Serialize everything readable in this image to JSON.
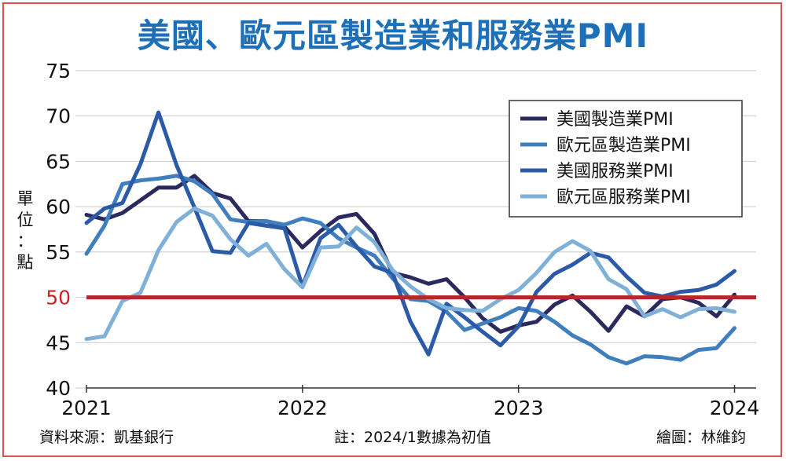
{
  "chart_data": {
    "type": "line",
    "title": "美國、歐元區製造業和服務業PMI",
    "ylabel": "單位：點",
    "ylim": [
      40,
      75
    ],
    "yticks": [
      40,
      45,
      50,
      55,
      60,
      65,
      70,
      75
    ],
    "highlight_tick": 50,
    "x_range": [
      2021.0,
      2024.1
    ],
    "xticks": [
      {
        "value": 2021,
        "label": "2021"
      },
      {
        "value": 2022,
        "label": "2022"
      },
      {
        "value": 2023,
        "label": "2023"
      },
      {
        "value": 2024,
        "label": "2024"
      }
    ],
    "reference_line": {
      "y": 50,
      "color": "#b8262b"
    },
    "legend_position": "top-right",
    "series": [
      {
        "name": "美國製造業PMI",
        "color": "#2b2a5e",
        "values": [
          [
            2021.0,
            59.1
          ],
          [
            2021.0833,
            58.6
          ],
          [
            2021.1667,
            59.3
          ],
          [
            2021.25,
            60.7
          ],
          [
            2021.3333,
            62.1
          ],
          [
            2021.4167,
            62.1
          ],
          [
            2021.5,
            63.4
          ],
          [
            2021.5833,
            61.5
          ],
          [
            2021.6667,
            60.9
          ],
          [
            2021.75,
            58.4
          ],
          [
            2021.8333,
            58.4
          ],
          [
            2021.9167,
            57.8
          ],
          [
            2022.0,
            55.5
          ],
          [
            2022.0833,
            57.3
          ],
          [
            2022.1667,
            58.8
          ],
          [
            2022.25,
            59.2
          ],
          [
            2022.3333,
            57.0
          ],
          [
            2022.4167,
            52.7
          ],
          [
            2022.5,
            52.2
          ],
          [
            2022.5833,
            51.5
          ],
          [
            2022.6667,
            52.0
          ],
          [
            2022.75,
            50.0
          ],
          [
            2022.8333,
            47.7
          ],
          [
            2022.9167,
            46.2
          ],
          [
            2023.0,
            46.9
          ],
          [
            2023.0833,
            47.3
          ],
          [
            2023.1667,
            49.2
          ],
          [
            2023.25,
            50.2
          ],
          [
            2023.3333,
            48.4
          ],
          [
            2023.4167,
            46.3
          ],
          [
            2023.5,
            49.0
          ],
          [
            2023.5833,
            47.9
          ],
          [
            2023.6667,
            49.8
          ],
          [
            2023.75,
            50.0
          ],
          [
            2023.8333,
            49.4
          ],
          [
            2023.9167,
            47.9
          ],
          [
            2024.0,
            50.3
          ]
        ]
      },
      {
        "name": "歐元區製造業PMI",
        "color": "#3f7fbf",
        "values": [
          [
            2021.0,
            54.8
          ],
          [
            2021.0833,
            57.9
          ],
          [
            2021.1667,
            62.5
          ],
          [
            2021.25,
            62.9
          ],
          [
            2021.3333,
            63.1
          ],
          [
            2021.4167,
            63.4
          ],
          [
            2021.5,
            62.8
          ],
          [
            2021.5833,
            61.4
          ],
          [
            2021.6667,
            58.6
          ],
          [
            2021.75,
            58.3
          ],
          [
            2021.8333,
            58.4
          ],
          [
            2021.9167,
            58.0
          ],
          [
            2022.0,
            58.7
          ],
          [
            2022.0833,
            58.2
          ],
          [
            2022.1667,
            56.5
          ],
          [
            2022.25,
            55.5
          ],
          [
            2022.3333,
            54.6
          ],
          [
            2022.4167,
            52.1
          ],
          [
            2022.5,
            49.8
          ],
          [
            2022.5833,
            49.6
          ],
          [
            2022.6667,
            48.4
          ],
          [
            2022.75,
            46.4
          ],
          [
            2022.8333,
            47.1
          ],
          [
            2022.9167,
            47.8
          ],
          [
            2023.0,
            48.8
          ],
          [
            2023.0833,
            48.5
          ],
          [
            2023.1667,
            47.3
          ],
          [
            2023.25,
            45.8
          ],
          [
            2023.3333,
            44.8
          ],
          [
            2023.4167,
            43.4
          ],
          [
            2023.5,
            42.7
          ],
          [
            2023.5833,
            43.5
          ],
          [
            2023.6667,
            43.4
          ],
          [
            2023.75,
            43.1
          ],
          [
            2023.8333,
            44.2
          ],
          [
            2023.9167,
            44.4
          ],
          [
            2024.0,
            46.6
          ]
        ]
      },
      {
        "name": "美國服務業PMI",
        "color": "#2a5aa8",
        "values": [
          [
            2021.0,
            58.2
          ],
          [
            2021.0833,
            59.8
          ],
          [
            2021.1667,
            60.4
          ],
          [
            2021.25,
            64.7
          ],
          [
            2021.3333,
            70.4
          ],
          [
            2021.4167,
            64.6
          ],
          [
            2021.5,
            59.9
          ],
          [
            2021.5833,
            55.1
          ],
          [
            2021.6667,
            54.9
          ],
          [
            2021.75,
            58.2
          ],
          [
            2021.8333,
            57.9
          ],
          [
            2021.9167,
            57.6
          ],
          [
            2022.0,
            51.2
          ],
          [
            2022.0833,
            56.5
          ],
          [
            2022.1667,
            58.0
          ],
          [
            2022.25,
            55.6
          ],
          [
            2022.3333,
            53.4
          ],
          [
            2022.4167,
            52.7
          ],
          [
            2022.5,
            47.3
          ],
          [
            2022.5833,
            43.7
          ],
          [
            2022.6667,
            49.3
          ],
          [
            2022.75,
            47.8
          ],
          [
            2022.8333,
            46.2
          ],
          [
            2022.9167,
            44.7
          ],
          [
            2023.0,
            46.8
          ],
          [
            2023.0833,
            50.6
          ],
          [
            2023.1667,
            52.6
          ],
          [
            2023.25,
            53.6
          ],
          [
            2023.3333,
            54.9
          ],
          [
            2023.4167,
            54.4
          ],
          [
            2023.5,
            52.3
          ],
          [
            2023.5833,
            50.5
          ],
          [
            2023.6667,
            50.1
          ],
          [
            2023.75,
            50.6
          ],
          [
            2023.8333,
            50.8
          ],
          [
            2023.9167,
            51.4
          ],
          [
            2024.0,
            52.9
          ]
        ]
      },
      {
        "name": "歐元區服務業PMI",
        "color": "#7fb0d8",
        "values": [
          [
            2021.0,
            45.4
          ],
          [
            2021.0833,
            45.7
          ],
          [
            2021.1667,
            49.6
          ],
          [
            2021.25,
            50.5
          ],
          [
            2021.3333,
            55.2
          ],
          [
            2021.4167,
            58.3
          ],
          [
            2021.5,
            59.8
          ],
          [
            2021.5833,
            59.0
          ],
          [
            2021.6667,
            56.4
          ],
          [
            2021.75,
            54.6
          ],
          [
            2021.8333,
            55.9
          ],
          [
            2021.9167,
            53.1
          ],
          [
            2022.0,
            51.1
          ],
          [
            2022.0833,
            55.5
          ],
          [
            2022.1667,
            55.6
          ],
          [
            2022.25,
            57.7
          ],
          [
            2022.3333,
            56.1
          ],
          [
            2022.4167,
            53.0
          ],
          [
            2022.5,
            51.2
          ],
          [
            2022.5833,
            49.8
          ],
          [
            2022.6667,
            48.8
          ],
          [
            2022.75,
            48.6
          ],
          [
            2022.8333,
            48.5
          ],
          [
            2022.9167,
            49.8
          ],
          [
            2023.0,
            50.8
          ],
          [
            2023.0833,
            52.7
          ],
          [
            2023.1667,
            55.0
          ],
          [
            2023.25,
            56.2
          ],
          [
            2023.3333,
            55.1
          ],
          [
            2023.4167,
            52.0
          ],
          [
            2023.5,
            50.9
          ],
          [
            2023.5833,
            47.9
          ],
          [
            2023.6667,
            48.7
          ],
          [
            2023.75,
            47.8
          ],
          [
            2023.8333,
            48.7
          ],
          [
            2023.9167,
            48.8
          ],
          [
            2024.0,
            48.4
          ]
        ]
      }
    ]
  },
  "footer": {
    "source": "資料來源：凱基銀行",
    "note": "註：2024/1數據為初值",
    "credit": "繪圖：林維鈞"
  }
}
